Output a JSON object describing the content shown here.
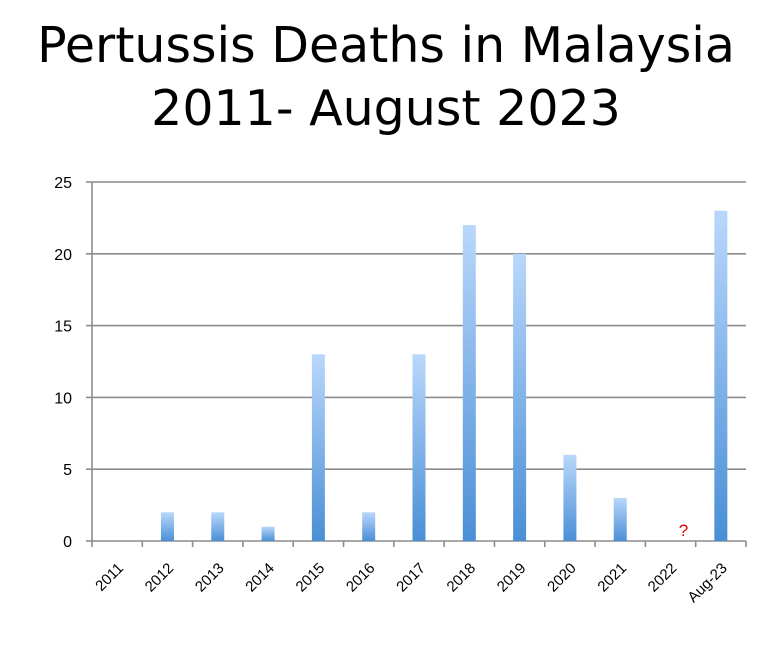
{
  "chart_data": {
    "type": "bar",
    "title_lines": [
      "Pertussis Deaths in Malaysia",
      "2011- August 2023"
    ],
    "xlabel": "",
    "ylabel": "",
    "categories": [
      "2011",
      "2012",
      "2013",
      "2014",
      "2015",
      "2016",
      "2017",
      "2018",
      "2019",
      "2020",
      "2021",
      "2022",
      "Aug-23"
    ],
    "values": [
      0,
      2,
      2,
      1,
      13,
      2,
      13,
      22,
      20,
      6,
      3,
      null,
      23
    ],
    "ylim": [
      0,
      25
    ],
    "yticks": [
      0,
      5,
      10,
      15,
      20,
      25
    ],
    "grid": true,
    "legend": "none",
    "bar_color_light": "#b9d7fb",
    "bar_color_dark": "#4a8fd6",
    "annotations": [
      {
        "category": "2022",
        "text": "?",
        "color": "#e00000"
      }
    ]
  }
}
